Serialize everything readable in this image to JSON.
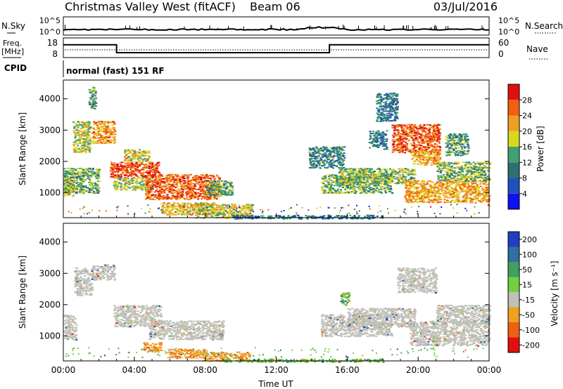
{
  "header": {
    "title": "Christmas Valley West (fitACF)",
    "beam": "Beam 06",
    "date": "03/Jul/2016"
  },
  "noise_panel": {
    "left_label": "N.Sky",
    "right_label": "N.Search",
    "left_ticks": [
      "10^5",
      "10^0"
    ],
    "right_ticks": [
      "10^5",
      "10^0"
    ]
  },
  "freq_panel": {
    "left_label_1": "Freq.",
    "left_label_2": "[MHz]",
    "left_ticks": [
      "18",
      "8"
    ],
    "right_label": "Nave",
    "right_ticks": [
      "60",
      "0"
    ],
    "freq_steps": [
      {
        "from": 0,
        "to": 3,
        "mhz": 14.5
      },
      {
        "from": 3,
        "to": 15,
        "mhz": 10.5
      },
      {
        "from": 15,
        "to": 24,
        "mhz": 14.5
      }
    ]
  },
  "cpid": {
    "label": "CPID",
    "mode": "normal (fast) 151 RF"
  },
  "chart_data": [
    {
      "type": "heatmap",
      "name": "power",
      "ylabel": "Slant Range [km]",
      "yticks": [
        "1000",
        "2000",
        "3000",
        "4000"
      ],
      "ylim": [
        200,
        4600
      ],
      "xlim": [
        0,
        24
      ],
      "colorbar": {
        "label": "Power [dB]",
        "ticks": [
          "4",
          "8",
          "12",
          "16",
          "20",
          "24",
          "28"
        ],
        "range": [
          0,
          32
        ],
        "colors": [
          "#1010f0",
          "#2050c0",
          "#307070",
          "#40a070",
          "#d8d820",
          "#f0a020",
          "#f06010",
          "#e01010"
        ]
      },
      "regions": [
        {
          "t0": 0.0,
          "t1": 0.6,
          "r0": 900,
          "r1": 1500,
          "level": 0.62
        },
        {
          "t0": 0.5,
          "t1": 1.5,
          "r0": 2300,
          "r1": 3300,
          "level": 0.55
        },
        {
          "t0": 1.6,
          "t1": 2.9,
          "r0": 2600,
          "r1": 3300,
          "level": 0.72
        },
        {
          "t0": 0.0,
          "t1": 2.0,
          "r0": 1000,
          "r1": 1800,
          "level": 0.45
        },
        {
          "t0": 1.4,
          "t1": 1.8,
          "r0": 3700,
          "r1": 4400,
          "level": 0.4
        },
        {
          "t0": 2.6,
          "t1": 5.4,
          "r0": 1500,
          "r1": 2000,
          "level": 0.88
        },
        {
          "t0": 2.8,
          "t1": 5.0,
          "r0": 1100,
          "r1": 1500,
          "level": 0.52
        },
        {
          "t0": 3.4,
          "t1": 4.8,
          "r0": 2000,
          "r1": 2400,
          "level": 0.6
        },
        {
          "t0": 4.6,
          "t1": 8.8,
          "r0": 800,
          "r1": 1600,
          "level": 0.82
        },
        {
          "t0": 5.5,
          "t1": 8.5,
          "r0": 300,
          "r1": 700,
          "level": 0.62
        },
        {
          "t0": 7.4,
          "t1": 10.6,
          "r0": 200,
          "r1": 650,
          "level": 0.58
        },
        {
          "t0": 8.0,
          "t1": 9.5,
          "r0": 900,
          "r1": 1400,
          "level": 0.42
        },
        {
          "t0": 9.5,
          "t1": 18.0,
          "r0": 180,
          "r1": 300,
          "level": 0.3
        },
        {
          "t0": 13.8,
          "t1": 15.8,
          "r0": 1800,
          "r1": 2500,
          "level": 0.35
        },
        {
          "t0": 14.5,
          "t1": 18.5,
          "r0": 1000,
          "r1": 1600,
          "level": 0.45
        },
        {
          "t0": 15.5,
          "t1": 19.8,
          "r0": 1300,
          "r1": 1800,
          "level": 0.5
        },
        {
          "t0": 17.2,
          "t1": 18.2,
          "r0": 2400,
          "r1": 3000,
          "level": 0.3
        },
        {
          "t0": 17.6,
          "t1": 18.8,
          "r0": 3300,
          "r1": 4200,
          "level": 0.3
        },
        {
          "t0": 18.5,
          "t1": 21.2,
          "r0": 2300,
          "r1": 3200,
          "level": 0.82
        },
        {
          "t0": 19.6,
          "t1": 21.2,
          "r0": 1900,
          "r1": 2400,
          "level": 0.7
        },
        {
          "t0": 19.2,
          "t1": 24.0,
          "r0": 700,
          "r1": 1400,
          "level": 0.68
        },
        {
          "t0": 21.0,
          "t1": 24.0,
          "r0": 1400,
          "r1": 2000,
          "level": 0.48
        },
        {
          "t0": 21.5,
          "t1": 22.8,
          "r0": 2200,
          "r1": 2900,
          "level": 0.4
        }
      ]
    },
    {
      "type": "heatmap",
      "name": "velocity",
      "ylabel": "Slant Range [km]",
      "yticks": [
        "1000",
        "2000",
        "3000",
        "4000"
      ],
      "ylim": [
        200,
        4600
      ],
      "xlim": [
        0,
        24
      ],
      "xlabel": "Time UT",
      "xticks": [
        "00:00",
        "04:00",
        "08:00",
        "12:00",
        "16:00",
        "20:00",
        "00:00"
      ],
      "colorbar": {
        "label": "Velocity [m s⁻¹]",
        "ticks": [
          "200",
          "100",
          "50",
          "15",
          "-15",
          "-50",
          "-100",
          "-200"
        ],
        "colors": [
          "#2040c0",
          "#3070a0",
          "#40a060",
          "#70d040",
          "#c0c0b8",
          "#f0a020",
          "#f06010",
          "#e01010"
        ]
      },
      "regions": [
        {
          "t0": 0.0,
          "t1": 0.7,
          "r0": 900,
          "r1": 1700,
          "class": "low"
        },
        {
          "t0": 0.6,
          "t1": 1.6,
          "r0": 2300,
          "r1": 3200,
          "class": "low"
        },
        {
          "t0": 1.6,
          "t1": 2.9,
          "r0": 2800,
          "r1": 3300,
          "class": "low"
        },
        {
          "t0": 2.8,
          "t1": 5.5,
          "r0": 1300,
          "r1": 2000,
          "class": "low"
        },
        {
          "t0": 4.8,
          "t1": 9.0,
          "r0": 900,
          "r1": 1500,
          "class": "low"
        },
        {
          "t0": 4.5,
          "t1": 5.5,
          "r0": 500,
          "r1": 800,
          "class": "neg"
        },
        {
          "t0": 5.8,
          "t1": 8.0,
          "r0": 300,
          "r1": 600,
          "class": "neg"
        },
        {
          "t0": 7.8,
          "t1": 10.5,
          "r0": 200,
          "r1": 500,
          "class": "neg"
        },
        {
          "t0": 9.0,
          "t1": 18.0,
          "r0": 180,
          "r1": 280,
          "class": "pos"
        },
        {
          "t0": 14.5,
          "t1": 18.5,
          "r0": 1000,
          "r1": 1700,
          "class": "low"
        },
        {
          "t0": 16.0,
          "t1": 19.8,
          "r0": 1300,
          "r1": 1900,
          "class": "low"
        },
        {
          "t0": 18.8,
          "t1": 21.0,
          "r0": 2400,
          "r1": 3200,
          "class": "low"
        },
        {
          "t0": 19.5,
          "t1": 24.0,
          "r0": 700,
          "r1": 1500,
          "class": "low"
        },
        {
          "t0": 21.0,
          "t1": 24.0,
          "r0": 1400,
          "r1": 2000,
          "class": "low"
        },
        {
          "t0": 15.6,
          "t1": 16.1,
          "r0": 2000,
          "r1": 2400,
          "class": "pos"
        }
      ]
    }
  ]
}
